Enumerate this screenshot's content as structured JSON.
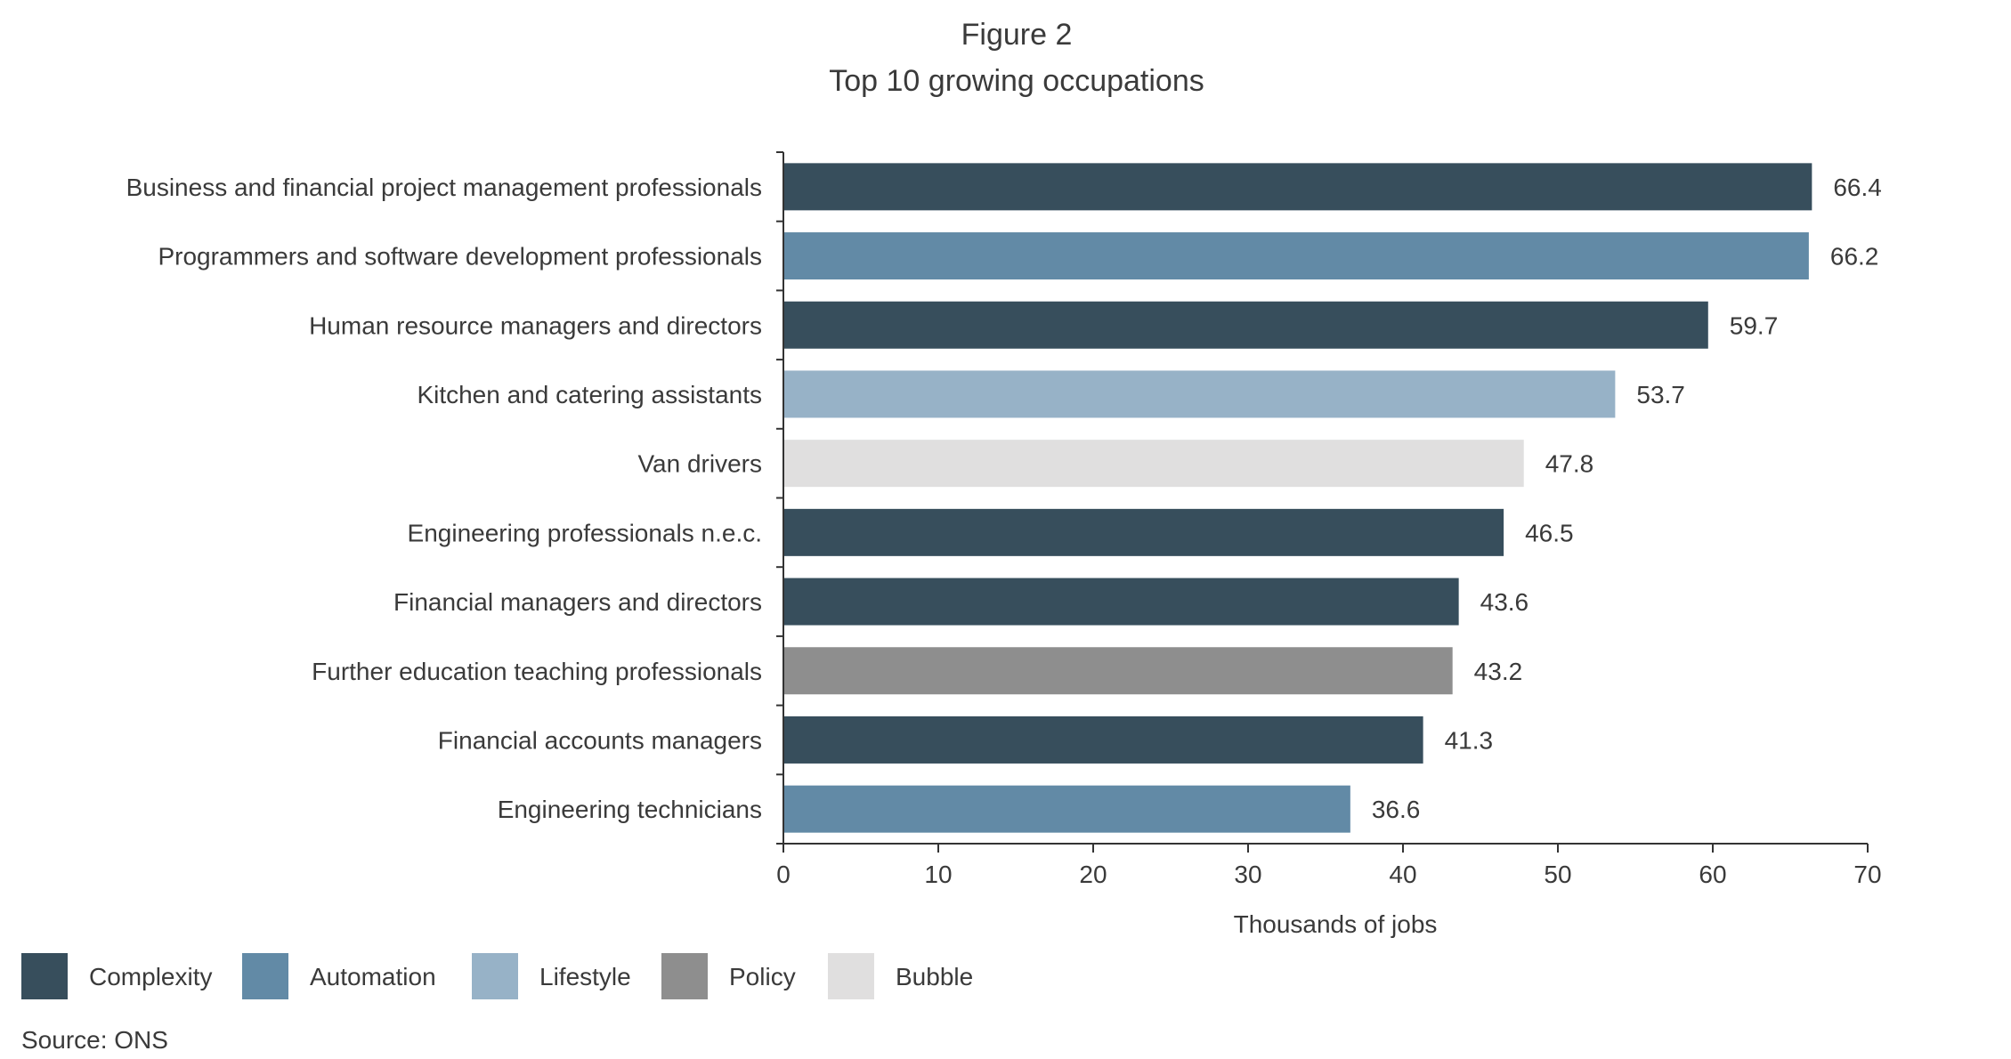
{
  "chart_data": {
    "type": "bar",
    "orientation": "horizontal",
    "figure_label": "Figure 2",
    "title": "Top 10 growing occupations",
    "xlabel": "Thousands of jobs",
    "ylabel": "",
    "xlim": [
      0,
      70
    ],
    "xticks": [
      0,
      10,
      20,
      30,
      40,
      50,
      60,
      70
    ],
    "grid": false,
    "legend_position": "bottom-left",
    "categories": [
      "Business and financial project management professionals",
      "Programmers and software development professionals",
      "Human resource managers and directors",
      "Kitchen and catering assistants",
      "Van drivers",
      "Engineering professionals n.e.c.",
      "Financial managers and directors",
      "Further education teaching professionals",
      "Financial accounts managers",
      "Engineering technicians"
    ],
    "values": [
      66.4,
      66.2,
      59.7,
      53.7,
      47.8,
      46.5,
      43.6,
      43.2,
      41.3,
      36.6
    ],
    "value_labels": [
      "66.4",
      "66.2",
      "59.7",
      "53.7",
      "47.8",
      "46.5",
      "43.6",
      "43.2",
      "41.3",
      "36.6"
    ],
    "groups": [
      "Complexity",
      "Automation",
      "Complexity",
      "Lifestyle",
      "Bubble",
      "Complexity",
      "Complexity",
      "Policy",
      "Complexity",
      "Automation"
    ],
    "legend": [
      {
        "name": "Complexity",
        "color": "#374e5c"
      },
      {
        "name": "Automation",
        "color": "#628aa6"
      },
      {
        "name": "Lifestyle",
        "color": "#97b2c7"
      },
      {
        "name": "Policy",
        "color": "#8e8e8e"
      },
      {
        "name": "Bubble",
        "color": "#e0dfdf"
      }
    ],
    "source": "Source: ONS"
  }
}
